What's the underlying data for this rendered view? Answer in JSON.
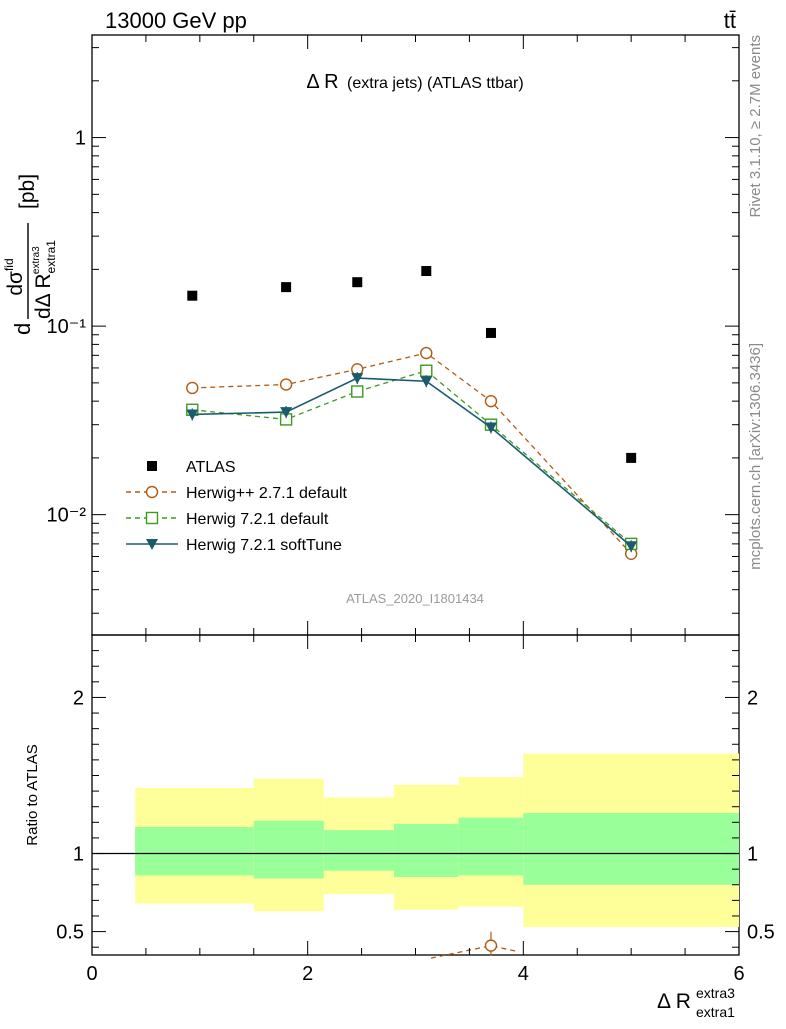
{
  "header": {
    "left": "13000 GeV pp",
    "right": "tt̄"
  },
  "title_main": "Δ R",
  "title_rest": "(extra jets) (ATLAS ttbar)",
  "y_label": {
    "d1": "d",
    "num": "dσ",
    "num_sup": "fid",
    "den": "dΔ R",
    "den_sub": "extra1",
    "den_sup": "extra3",
    "unit": "[pb]"
  },
  "x_label": {
    "main": "Δ R",
    "sup": "extra3",
    "sub": "extra1"
  },
  "ratio_label": "Ratio to ATLAS",
  "side_text": {
    "rivet": "Rivet 3.1.10, ≥ 2.7M events",
    "mcplots": "mcplots.cern.ch [arXiv:1306.3436]"
  },
  "analysis_id": "ATLAS_2020_I1801434",
  "colors": {
    "data": "#000000",
    "herwigpp": "#b35a12",
    "herwig_default": "#3d9a1e",
    "herwig_soft": "#1a5c6e",
    "band_outer": "#ffff99",
    "band_inner": "#99ff99"
  },
  "chart_data": {
    "type": "scatter",
    "x_ticks": [
      "0",
      "2",
      "4",
      "6"
    ],
    "xlim": [
      0,
      6
    ],
    "main": {
      "ylim": [
        0.0023,
        3.5
      ],
      "yscale": "log",
      "y_ticks": [
        "10⁻²",
        "10⁻¹",
        "1"
      ],
      "legend_position": "lower-left",
      "x": [
        0.93,
        1.8,
        2.46,
        3.1,
        3.7,
        5.0
      ],
      "series": [
        {
          "name": "ATLAS",
          "marker": "filled-square",
          "values": [
            0.145,
            0.161,
            0.171,
            0.196,
            0.092,
            0.02
          ]
        },
        {
          "name": "Herwig++ 2.7.1 default",
          "marker": "open-circle",
          "line": "dashed",
          "values": [
            0.047,
            0.049,
            0.059,
            0.072,
            0.04,
            0.0062
          ]
        },
        {
          "name": "Herwig 7.2.1 default",
          "marker": "open-square",
          "line": "dashed",
          "values": [
            0.036,
            0.032,
            0.045,
            0.058,
            0.03,
            0.007
          ]
        },
        {
          "name": "Herwig 7.2.1 softTune",
          "marker": "filled-triangle-down",
          "line": "solid",
          "values": [
            0.034,
            0.035,
            0.053,
            0.051,
            0.029,
            0.0068
          ]
        }
      ]
    },
    "ratio": {
      "ylim": [
        0.35,
        2.4
      ],
      "y_ticks": [
        "0.5",
        "1",
        "2"
      ],
      "reference": 1,
      "bins": [
        {
          "x": [
            0.4,
            1.5
          ],
          "outer": [
            0.68,
            1.42
          ],
          "inner": [
            0.86,
            1.17
          ]
        },
        {
          "x": [
            1.5,
            2.15
          ],
          "outer": [
            0.63,
            1.48
          ],
          "inner": [
            0.84,
            1.21
          ]
        },
        {
          "x": [
            2.15,
            2.8
          ],
          "outer": [
            0.74,
            1.36
          ],
          "inner": [
            0.89,
            1.15
          ]
        },
        {
          "x": [
            2.8,
            3.4
          ],
          "outer": [
            0.64,
            1.44
          ],
          "inner": [
            0.85,
            1.19
          ]
        },
        {
          "x": [
            3.4,
            4.0
          ],
          "outer": [
            0.66,
            1.49
          ],
          "inner": [
            0.86,
            1.23
          ]
        },
        {
          "x": [
            4.0,
            6.0
          ],
          "outer": [
            0.53,
            1.64
          ],
          "inner": [
            0.8,
            1.26
          ]
        }
      ],
      "visible_points": [
        {
          "series": "Herwig++ 2.7.1 default",
          "x": 3.7,
          "y": 0.41
        }
      ]
    }
  }
}
